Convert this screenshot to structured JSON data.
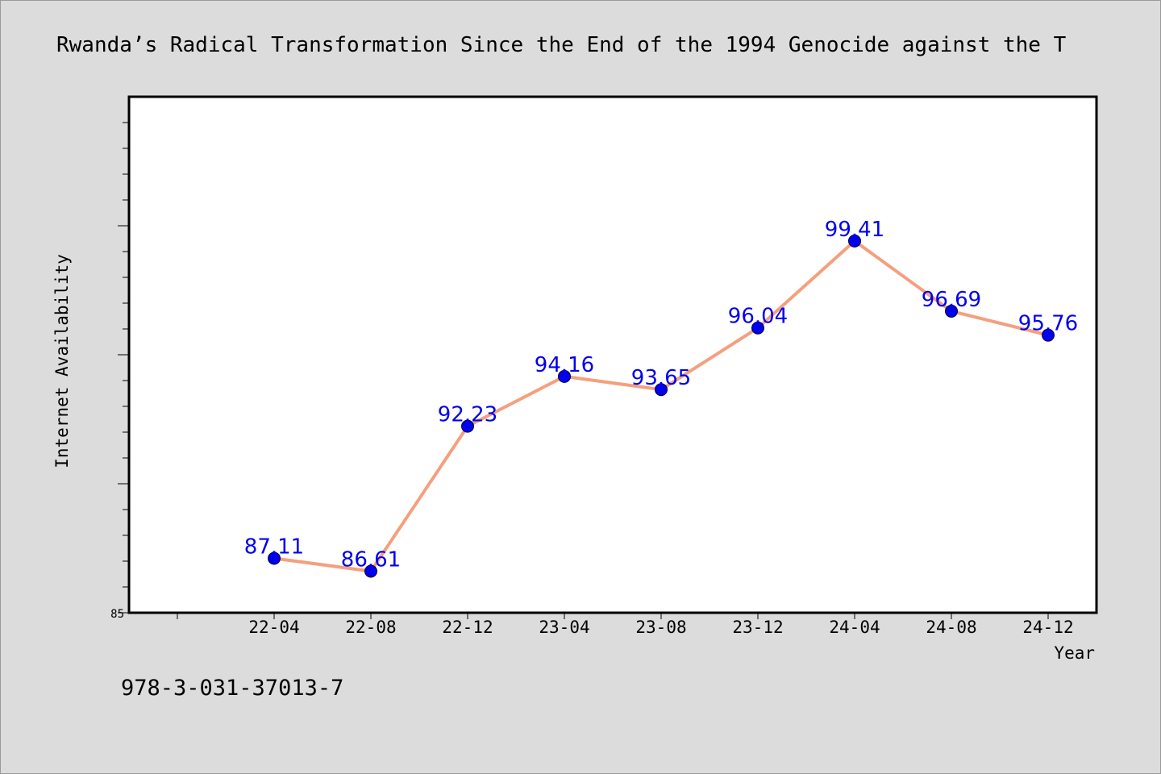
{
  "title": "Rwanda’s Radical Transformation Since the End of the 1994 Genocide against the T",
  "footnote": "978-3-031-37013-7",
  "colors": {
    "background": "#dcdcdc",
    "plot_background": "#ffffff",
    "line": "#f4a07e",
    "marker": "#0000ee",
    "data_label": "#0000ee"
  },
  "chart_data": {
    "type": "line",
    "title": "Rwanda’s Radical Transformation Since the End of the 1994 Genocide against the T",
    "xlabel": "Year",
    "ylabel": "Internet Availability",
    "categories": [
      "22-04",
      "22-08",
      "22-12",
      "23-04",
      "23-08",
      "23-12",
      "24-04",
      "24-08",
      "24-12"
    ],
    "series": [
      {
        "values": [
          87.11,
          86.61,
          92.23,
          94.16,
          93.65,
          96.04,
          99.41,
          96.69,
          95.76
        ]
      }
    ],
    "data_labels": [
      "87.11",
      "86.61",
      "92.23",
      "94.16",
      "93.65",
      "96.04",
      "99.41",
      "96.69",
      "95.76"
    ],
    "ylim": [
      85,
      105
    ],
    "yticks_labeled": [
      "85"
    ],
    "grid": false,
    "legend": "none"
  }
}
